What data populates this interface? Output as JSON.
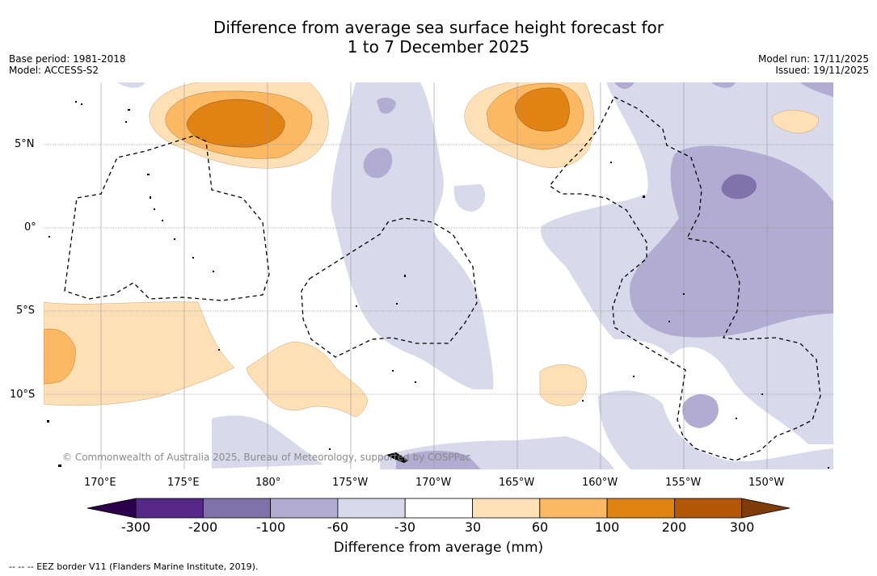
{
  "title_line1": "Difference from average sea surface height forecast for",
  "title_line2": "1 to 7 December 2025",
  "meta_left": {
    "base_period": "Base period: 1981-2018",
    "model": "Model: ACCESS-S2"
  },
  "meta_right": {
    "model_run": "Model run: 17/11/2025",
    "issued": "Issued: 19/11/2025"
  },
  "lat_labels": [
    "5°N",
    "0°",
    "5°S",
    "10°S"
  ],
  "lon_labels": [
    "170°E",
    "175°E",
    "180°",
    "175°W",
    "170°W",
    "165°W",
    "160°W",
    "155°W",
    "150°W"
  ],
  "copyright": "© Commonwealth of Australia 2025, Bureau of Meteorology, supported by COSPPac",
  "colorbar": {
    "title": "Difference from average (mm)",
    "ticks": [
      "-300",
      "-200",
      "-100",
      "-60",
      "-30",
      "30",
      "60",
      "100",
      "200",
      "300"
    ],
    "colors": [
      "#542788",
      "#8073ac",
      "#b2abd2",
      "#d8daeb",
      "#ffffff",
      "#fee0b6",
      "#fdb863",
      "#e08214",
      "#b35806"
    ],
    "extend_low": "#2d004b",
    "extend_high": "#7f3b08"
  },
  "legend_note": "--  --  -- EEZ border V11 (Flanders Marine Institute, 2019)."
}
